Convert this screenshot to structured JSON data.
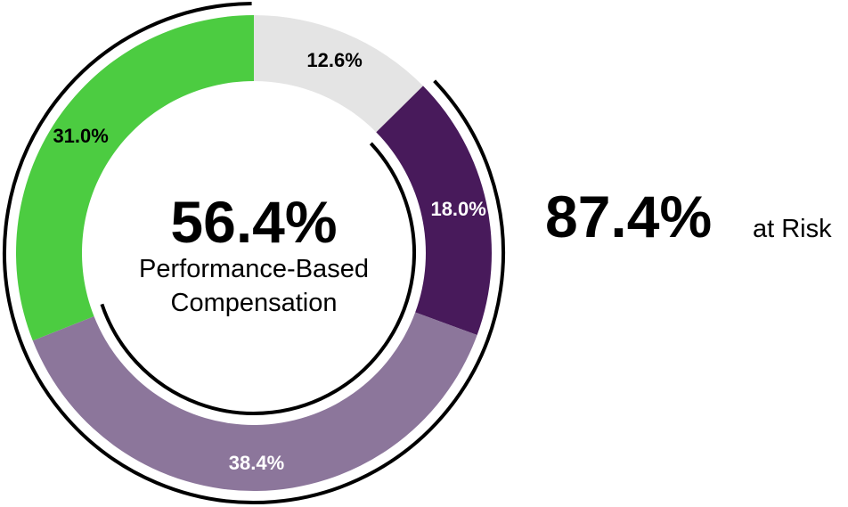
{
  "chart_data": {
    "type": "pie",
    "variant": "donut",
    "slices": [
      {
        "label": "12.6%",
        "value": 12.6,
        "color": "#e4e4e4",
        "label_color": "#000000"
      },
      {
        "label": "18.0%",
        "value": 18.0,
        "color": "#481a5b",
        "label_color": "#ffffff"
      },
      {
        "label": "38.4%",
        "value": 38.4,
        "color": "#8c769b",
        "label_color": "#ffffff"
      },
      {
        "label": "31.0%",
        "value": 31.0,
        "color": "#4ccc41",
        "label_color": "#000000"
      }
    ],
    "center": {
      "value": "56.4%",
      "line1": "Performance-Based",
      "line2": "Compensation"
    },
    "side": {
      "value": "87.4%",
      "label": "at Risk"
    },
    "grid": false,
    "legend": "none"
  }
}
